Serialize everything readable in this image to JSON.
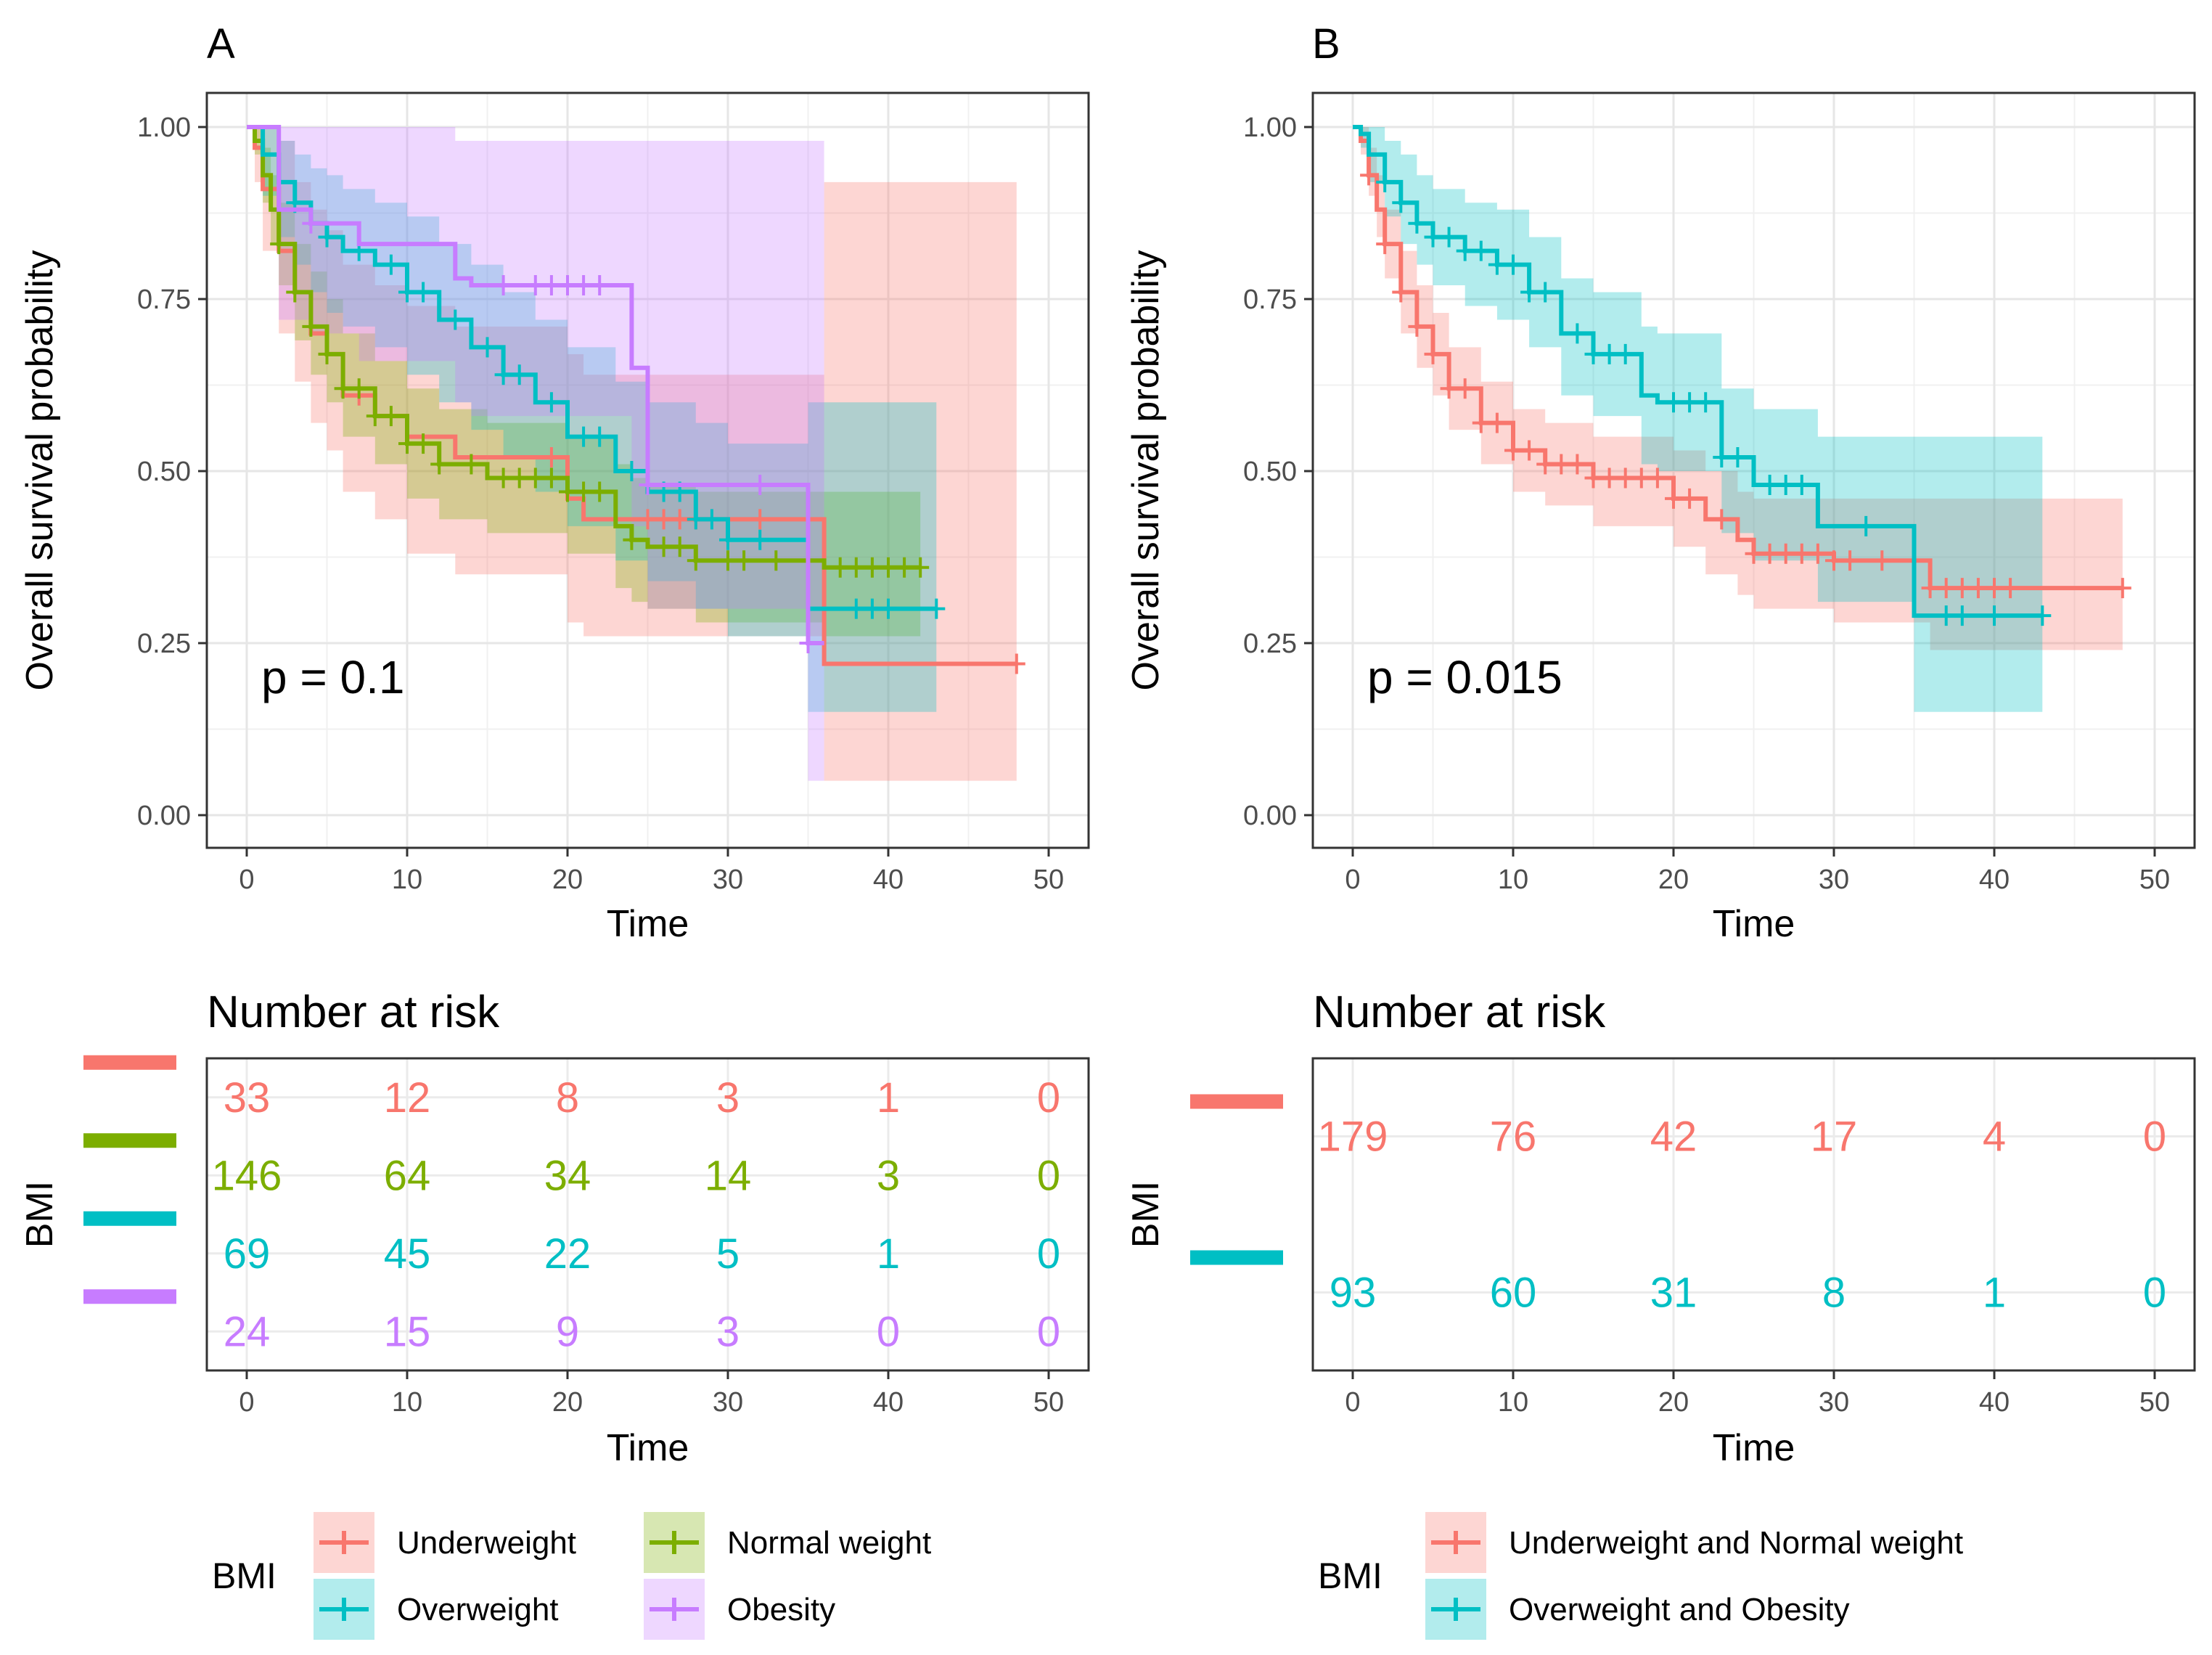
{
  "chart_data": [
    {
      "panel": "A",
      "type": "line",
      "subtype": "kaplan-meier survival curve with confidence bands",
      "xlabel": "Time",
      "ylabel": "Overall survival probability",
      "xlim": [
        0,
        50
      ],
      "ylim": [
        0,
        1
      ],
      "xticks": [
        "0",
        "10",
        "20",
        "30",
        "40",
        "50"
      ],
      "yticks": [
        "0.00",
        "0.25",
        "0.50",
        "0.75",
        "1.00"
      ],
      "annotation": "p = 0.1",
      "series": [
        {
          "name": "Underweight",
          "color": "#F8766D",
          "x": [
            0,
            0.5,
            1,
            2,
            3,
            4,
            5,
            6,
            8,
            10,
            13,
            20,
            21,
            30,
            36,
            48
          ],
          "y": [
            1.0,
            0.97,
            0.91,
            0.82,
            0.76,
            0.7,
            0.67,
            0.61,
            0.58,
            0.55,
            0.52,
            0.46,
            0.43,
            0.43,
            0.22,
            0.22
          ],
          "lower": [
            1.0,
            0.92,
            0.82,
            0.7,
            0.63,
            0.57,
            0.53,
            0.47,
            0.43,
            0.38,
            0.35,
            0.28,
            0.26,
            0.26,
            0.05,
            0.05
          ],
          "upper": [
            1.0,
            1.0,
            1.0,
            0.98,
            0.92,
            0.88,
            0.85,
            0.8,
            0.77,
            0.74,
            0.71,
            0.67,
            0.64,
            0.64,
            0.92,
            0.92
          ],
          "censor_x": [
            5,
            7,
            19,
            25,
            26,
            27,
            28,
            32,
            48
          ]
        },
        {
          "name": "Normal weight",
          "color": "#7CAE00",
          "x": [
            0,
            0.5,
            1,
            1.5,
            2,
            3,
            4,
            5,
            6,
            8,
            10,
            12,
            15,
            20,
            23,
            24,
            25,
            28,
            36,
            42
          ],
          "y": [
            1.0,
            0.98,
            0.93,
            0.88,
            0.83,
            0.76,
            0.71,
            0.67,
            0.62,
            0.58,
            0.54,
            0.51,
            0.49,
            0.47,
            0.42,
            0.4,
            0.39,
            0.37,
            0.36,
            0.36
          ],
          "lower": [
            1.0,
            0.96,
            0.89,
            0.83,
            0.77,
            0.69,
            0.64,
            0.6,
            0.55,
            0.51,
            0.46,
            0.43,
            0.41,
            0.38,
            0.33,
            0.31,
            0.3,
            0.28,
            0.26,
            0.26
          ],
          "upper": [
            1.0,
            1.0,
            0.97,
            0.93,
            0.89,
            0.83,
            0.79,
            0.75,
            0.7,
            0.66,
            0.62,
            0.59,
            0.57,
            0.55,
            0.51,
            0.49,
            0.48,
            0.47,
            0.47,
            0.47
          ],
          "censor_x": [
            2,
            3,
            4,
            5,
            6,
            7,
            8,
            9,
            10,
            11,
            12,
            14,
            16,
            17,
            18,
            19,
            20,
            21,
            22,
            24,
            26,
            27,
            28,
            30,
            31,
            33,
            37,
            38,
            39,
            40,
            41,
            42
          ]
        },
        {
          "name": "Overweight",
          "color": "#00BFC4",
          "x": [
            0,
            1,
            2,
            3,
            4,
            5,
            6,
            8,
            10,
            12,
            14,
            16,
            18,
            20,
            23,
            25,
            28,
            30,
            35,
            43
          ],
          "y": [
            1.0,
            0.96,
            0.92,
            0.89,
            0.86,
            0.84,
            0.82,
            0.8,
            0.76,
            0.72,
            0.68,
            0.64,
            0.6,
            0.55,
            0.5,
            0.47,
            0.43,
            0.4,
            0.3,
            0.3
          ],
          "lower": [
            1.0,
            0.9,
            0.84,
            0.8,
            0.76,
            0.73,
            0.71,
            0.68,
            0.64,
            0.6,
            0.56,
            0.52,
            0.47,
            0.42,
            0.37,
            0.34,
            0.3,
            0.26,
            0.15,
            0.15
          ],
          "upper": [
            1.0,
            1.0,
            0.98,
            0.96,
            0.94,
            0.93,
            0.91,
            0.89,
            0.87,
            0.83,
            0.8,
            0.76,
            0.72,
            0.68,
            0.63,
            0.6,
            0.57,
            0.54,
            0.6,
            0.6
          ],
          "censor_x": [
            3,
            5,
            7,
            9,
            10,
            11,
            13,
            15,
            16,
            17,
            19,
            21,
            22,
            24,
            26,
            27,
            28,
            29,
            30,
            32,
            38,
            39,
            40,
            43
          ]
        },
        {
          "name": "Obesity",
          "color": "#C77CFF",
          "x": [
            0,
            2,
            4,
            7,
            13,
            14,
            24,
            25,
            35,
            36
          ],
          "y": [
            1.0,
            0.88,
            0.86,
            0.83,
            0.78,
            0.77,
            0.65,
            0.48,
            0.25,
            0.25
          ],
          "lower": [
            1.0,
            0.72,
            0.7,
            0.66,
            0.6,
            0.58,
            0.42,
            0.3,
            0.05,
            0.05
          ],
          "upper": [
            1.0,
            1.0,
            1.0,
            1.0,
            0.98,
            0.98,
            0.98,
            0.98,
            0.98,
            0.98
          ],
          "censor_x": [
            4,
            16,
            18,
            19,
            20,
            21,
            22,
            25,
            32,
            35
          ]
        }
      ],
      "risk_table": {
        "title": "Number at risk",
        "ylabel": "BMI",
        "xlabel": "Time",
        "times": [
          "0",
          "10",
          "20",
          "30",
          "40",
          "50"
        ],
        "rows": [
          {
            "group": "Underweight",
            "color": "#F8766D",
            "counts": [
              "33",
              "12",
              "8",
              "3",
              "1",
              "0"
            ]
          },
          {
            "group": "Normal weight",
            "color": "#7CAE00",
            "counts": [
              "146",
              "64",
              "34",
              "14",
              "3",
              "0"
            ]
          },
          {
            "group": "Overweight",
            "color": "#00BFC4",
            "counts": [
              "69",
              "45",
              "22",
              "5",
              "1",
              "0"
            ]
          },
          {
            "group": "Obesity",
            "color": "#C77CFF",
            "counts": [
              "24",
              "15",
              "9",
              "3",
              "0",
              "0"
            ]
          }
        ]
      },
      "legend": {
        "title": "BMI",
        "position": "bottom",
        "entries": [
          {
            "label": "Underweight",
            "color": "#F8766D"
          },
          {
            "label": "Overweight",
            "color": "#00BFC4"
          },
          {
            "label": "Normal weight",
            "color": "#7CAE00"
          },
          {
            "label": "Obesity",
            "color": "#C77CFF"
          }
        ]
      }
    },
    {
      "panel": "B",
      "type": "line",
      "subtype": "kaplan-meier survival curve with confidence bands",
      "xlabel": "Time",
      "ylabel": "Overall survival probability",
      "xlim": [
        0,
        50
      ],
      "ylim": [
        0,
        1
      ],
      "xticks": [
        "0",
        "10",
        "20",
        "30",
        "40",
        "50"
      ],
      "yticks": [
        "0.00",
        "0.25",
        "0.50",
        "0.75",
        "1.00"
      ],
      "annotation": "p = 0.015",
      "series": [
        {
          "name": "Underweight and Normal weight",
          "color": "#F8766D",
          "x": [
            0,
            0.5,
            1,
            1.5,
            2,
            3,
            4,
            5,
            6,
            8,
            10,
            12,
            15,
            20,
            22,
            24,
            25,
            30,
            35,
            36,
            48
          ],
          "y": [
            1.0,
            0.98,
            0.93,
            0.88,
            0.83,
            0.76,
            0.71,
            0.67,
            0.62,
            0.57,
            0.53,
            0.51,
            0.49,
            0.46,
            0.43,
            0.4,
            0.38,
            0.37,
            0.37,
            0.33,
            0.33
          ],
          "lower": [
            1.0,
            0.96,
            0.9,
            0.84,
            0.78,
            0.7,
            0.65,
            0.61,
            0.56,
            0.51,
            0.47,
            0.45,
            0.42,
            0.39,
            0.35,
            0.32,
            0.3,
            0.28,
            0.28,
            0.24,
            0.24
          ],
          "upper": [
            1.0,
            1.0,
            0.97,
            0.93,
            0.88,
            0.82,
            0.77,
            0.73,
            0.68,
            0.63,
            0.59,
            0.57,
            0.55,
            0.53,
            0.5,
            0.47,
            0.46,
            0.46,
            0.46,
            0.46,
            0.46
          ],
          "censor_x": [
            1,
            2,
            3,
            4,
            5,
            6,
            7,
            8,
            9,
            10,
            11,
            12,
            13,
            14,
            15,
            16,
            17,
            18,
            19,
            20,
            21,
            23,
            25,
            26,
            27,
            28,
            29,
            30,
            31,
            33,
            36,
            37,
            38,
            39,
            40,
            41,
            48
          ]
        },
        {
          "name": "Overweight and Obesity",
          "color": "#00BFC4",
          "x": [
            0,
            0.5,
            1,
            2,
            3,
            4,
            5,
            7,
            9,
            11,
            13,
            15,
            18,
            19,
            23,
            25,
            29,
            35,
            43
          ],
          "y": [
            1.0,
            0.99,
            0.96,
            0.92,
            0.89,
            0.86,
            0.84,
            0.82,
            0.8,
            0.76,
            0.7,
            0.67,
            0.61,
            0.6,
            0.52,
            0.48,
            0.42,
            0.29,
            0.29
          ],
          "lower": [
            1.0,
            0.97,
            0.92,
            0.87,
            0.83,
            0.8,
            0.77,
            0.74,
            0.72,
            0.68,
            0.61,
            0.58,
            0.51,
            0.5,
            0.41,
            0.37,
            0.31,
            0.15,
            0.15
          ],
          "upper": [
            1.0,
            1.0,
            1.0,
            0.98,
            0.96,
            0.93,
            0.91,
            0.89,
            0.88,
            0.84,
            0.78,
            0.76,
            0.71,
            0.7,
            0.62,
            0.59,
            0.55,
            0.55,
            0.55
          ],
          "censor_x": [
            2,
            3,
            4,
            5,
            6,
            7,
            8,
            9,
            10,
            11,
            12,
            14,
            15,
            16,
            17,
            20,
            21,
            22,
            23,
            24,
            26,
            27,
            28,
            32,
            37,
            38,
            40,
            43
          ]
        }
      ],
      "risk_table": {
        "title": "Number at risk",
        "ylabel": "BMI",
        "xlabel": "Time",
        "times": [
          "0",
          "10",
          "20",
          "30",
          "40",
          "50"
        ],
        "rows": [
          {
            "group": "Underweight and Normal weight",
            "color": "#F8766D",
            "counts": [
              "179",
              "76",
              "42",
              "17",
              "4",
              "0"
            ]
          },
          {
            "group": "Overweight and Obesity",
            "color": "#00BFC4",
            "counts": [
              "93",
              "60",
              "31",
              "8",
              "1",
              "0"
            ]
          }
        ]
      },
      "legend": {
        "title": "BMI",
        "position": "bottom",
        "entries": [
          {
            "label": "Underweight and Normal weight",
            "color": "#F8766D"
          },
          {
            "label": "Overweight and Obesity",
            "color": "#00BFC4"
          }
        ]
      }
    }
  ]
}
